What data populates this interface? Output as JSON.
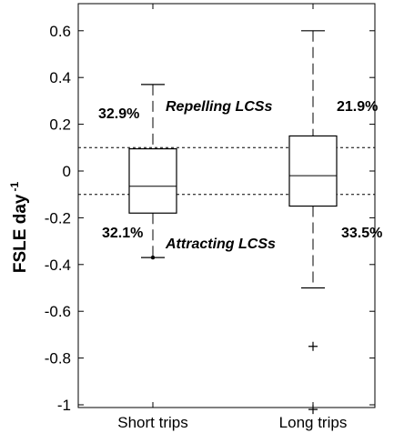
{
  "chart_data": {
    "type": "box",
    "ylabel": "FSLE day",
    "ylabel_sup": "-1",
    "ylim": [
      -1.04,
      0.7
    ],
    "yticks": [
      {
        "value": 0.6,
        "label": "0.6"
      },
      {
        "value": 0.4,
        "label": "0.4"
      },
      {
        "value": 0.2,
        "label": "0.2"
      },
      {
        "value": 0,
        "label": "0"
      },
      {
        "value": -0.2,
        "label": "-0.2"
      },
      {
        "value": -0.4,
        "label": "-0.4"
      },
      {
        "value": -0.6,
        "label": "-0.6"
      },
      {
        "value": -0.8,
        "label": "-0.8"
      },
      {
        "value": -1,
        "label": "-1"
      }
    ],
    "categories": [
      "Short trips",
      "Long trips"
    ],
    "boxes": [
      {
        "whisker_high": 0.37,
        "q3": 0.095,
        "median": -0.065,
        "q1": -0.18,
        "whisker_low": -0.37,
        "outliers": []
      },
      {
        "whisker_high": 0.6,
        "q3": 0.15,
        "median": -0.02,
        "q1": -0.15,
        "whisker_low": -0.5,
        "outliers": [
          -0.75,
          -1.02
        ]
      }
    ],
    "thresholds": [
      0.1,
      -0.1
    ],
    "annotations": {
      "upper_region": "Repelling LCSs",
      "lower_region": "Attracting LCSs",
      "short_upper_pct": "32.9%",
      "short_lower_pct": "32.1%",
      "long_upper_pct": "21.9%",
      "long_lower_pct": "33.5%"
    }
  }
}
